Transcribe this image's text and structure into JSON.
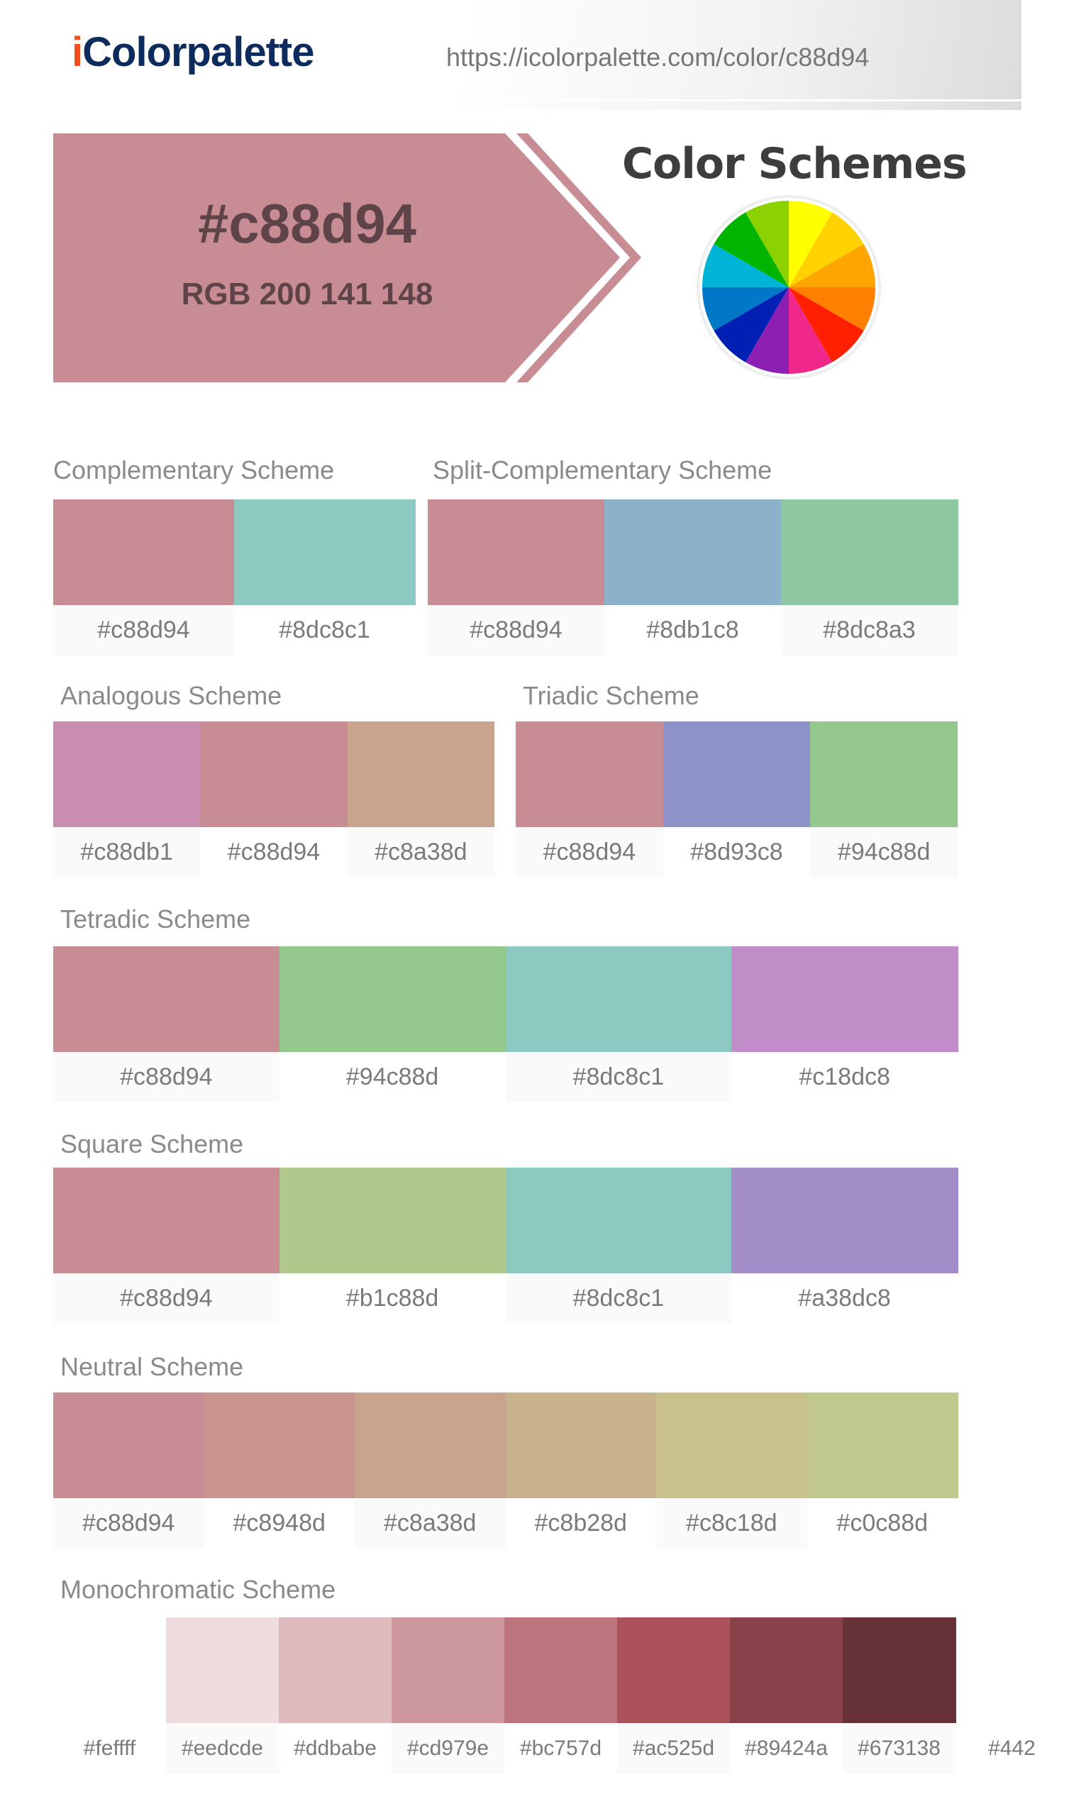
{
  "header": {
    "logo_i": "i",
    "logo_rest": "Colorpalette",
    "url": "https://icolorpalette.com/color/c88d94"
  },
  "hero": {
    "hex": "#c88d94",
    "rgb": "RGB 200 141 148",
    "color": "#c88d94",
    "text_color": "#5e4448"
  },
  "color_schemes_title": "Color Schemes",
  "wheel_colors": [
    "#ffff00",
    "#ffd200",
    "#ffa500",
    "#ff7f00",
    "#ff2000",
    "#f0288c",
    "#8c1eb4",
    "#0020b4",
    "#0078c8",
    "#00b4d8",
    "#00b400",
    "#8cd200"
  ],
  "schemes": {
    "complementary": {
      "title": "Complementary Scheme",
      "colors": [
        "#c88d94",
        "#8dc8c1"
      ]
    },
    "split": {
      "title": "Split-Complementary Scheme",
      "colors": [
        "#c88d94",
        "#8db1c8",
        "#8dc8a3"
      ]
    },
    "analogous": {
      "title": "Analogous Scheme",
      "colors": [
        "#c88db1",
        "#c88d94",
        "#c8a38d"
      ]
    },
    "triadic": {
      "title": "Triadic Scheme",
      "colors": [
        "#c88d94",
        "#8d93c8",
        "#94c88d"
      ]
    },
    "tetradic": {
      "title": "Tetradic Scheme",
      "colors": [
        "#c88d94",
        "#94c88d",
        "#8dc8c1",
        "#c18dc8"
      ]
    },
    "square": {
      "title": "Square Scheme",
      "colors": [
        "#c88d94",
        "#b1c88d",
        "#8dc8c1",
        "#a38dc8"
      ]
    },
    "neutral": {
      "title": "Neutral Scheme",
      "colors": [
        "#c88d94",
        "#c8948d",
        "#c8a38d",
        "#c8b28d",
        "#c8c18d",
        "#c0c88d"
      ]
    },
    "monochromatic": {
      "title": "Monochromatic Scheme",
      "colors": [
        "#feffff",
        "#eedcde",
        "#ddbabe",
        "#cd979e",
        "#bc757d",
        "#ac525d",
        "#89424a",
        "#673138",
        "#442"
      ]
    }
  }
}
